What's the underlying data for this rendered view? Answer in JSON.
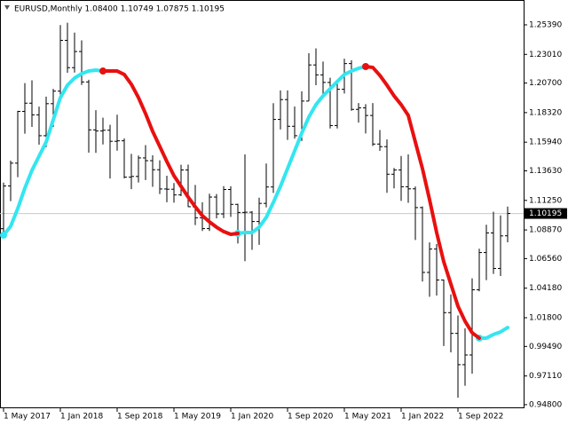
{
  "chart_data": {
    "type": "ohlc",
    "title": "EURUSD,Monthly  1.08400 1.10749 1.07875 1.10195",
    "categories": [
      "1 May 2017",
      null,
      null,
      null,
      null,
      null,
      null,
      null,
      "1 Jan 2018",
      null,
      null,
      null,
      null,
      null,
      null,
      null,
      "1 Sep 2018",
      null,
      null,
      null,
      null,
      null,
      null,
      null,
      "1 May 2019",
      null,
      null,
      null,
      null,
      null,
      null,
      null,
      "1 Jan 2020",
      null,
      null,
      null,
      null,
      null,
      null,
      null,
      "1 Sep 2020",
      null,
      null,
      null,
      null,
      null,
      null,
      null,
      "1 May 2021",
      null,
      null,
      null,
      null,
      null,
      null,
      null,
      "1 Jan 2022",
      null,
      null,
      null,
      null,
      null,
      null,
      null,
      "1 Sep 2022",
      null,
      null,
      null,
      null,
      null,
      null,
      null
    ],
    "ohlc": [
      [
        1.0897,
        1.1268,
        1.0839,
        1.1241
      ],
      [
        1.1241,
        1.1445,
        1.1119,
        1.1425
      ],
      [
        1.1425,
        1.1846,
        1.1312,
        1.1842
      ],
      [
        1.1842,
        1.207,
        1.1662,
        1.1908
      ],
      [
        1.1908,
        1.2092,
        1.1717,
        1.1814
      ],
      [
        1.1814,
        1.188,
        1.1574,
        1.1646
      ],
      [
        1.1646,
        1.1961,
        1.1554,
        1.1904
      ],
      [
        1.1904,
        1.2023,
        1.1717,
        1.2005
      ],
      [
        1.2005,
        1.2537,
        1.1915,
        1.2414
      ],
      [
        1.2414,
        1.2556,
        1.2153,
        1.2194
      ],
      [
        1.2194,
        1.2476,
        1.2155,
        1.2324
      ],
      [
        1.2324,
        1.2414,
        1.2055,
        1.2079
      ],
      [
        1.2079,
        1.2097,
        1.151,
        1.1693
      ],
      [
        1.1693,
        1.1852,
        1.1508,
        1.1684
      ],
      [
        1.1684,
        1.1791,
        1.1576,
        1.169
      ],
      [
        1.169,
        1.1734,
        1.1301,
        1.1601
      ],
      [
        1.1601,
        1.1815,
        1.1526,
        1.1605
      ],
      [
        1.1605,
        1.1625,
        1.1302,
        1.1312
      ],
      [
        1.1312,
        1.15,
        1.1216,
        1.1318
      ],
      [
        1.1318,
        1.1486,
        1.1269,
        1.1467
      ],
      [
        1.1467,
        1.157,
        1.1289,
        1.1445
      ],
      [
        1.1445,
        1.1488,
        1.1234,
        1.1372
      ],
      [
        1.1372,
        1.1448,
        1.1176,
        1.1217
      ],
      [
        1.1217,
        1.1324,
        1.111,
        1.1215
      ],
      [
        1.1215,
        1.1265,
        1.1107,
        1.1169
      ],
      [
        1.1169,
        1.1412,
        1.116,
        1.137
      ],
      [
        1.137,
        1.1413,
        1.1072,
        1.1074
      ],
      [
        1.1074,
        1.125,
        1.0926,
        1.0985
      ],
      [
        1.0985,
        1.111,
        1.0879,
        1.0898
      ],
      [
        1.0898,
        1.1179,
        1.0879,
        1.1152
      ],
      [
        1.1152,
        1.1176,
        1.0981,
        1.1016
      ],
      [
        1.1016,
        1.124,
        1.0982,
        1.1213
      ],
      [
        1.1213,
        1.1239,
        1.0992,
        1.1093
      ],
      [
        1.1093,
        1.1098,
        1.0778,
        1.1028
      ],
      [
        1.1028,
        1.1495,
        1.0636,
        1.103
      ],
      [
        1.103,
        1.1039,
        1.0727,
        1.0955
      ],
      [
        1.0955,
        1.1147,
        1.0767,
        1.1101
      ],
      [
        1.1101,
        1.1422,
        1.1069,
        1.1233
      ],
      [
        1.1233,
        1.1908,
        1.1185,
        1.1777
      ],
      [
        1.1777,
        1.2011,
        1.1696,
        1.1937
      ],
      [
        1.1937,
        1.2011,
        1.1612,
        1.1722
      ],
      [
        1.1722,
        1.1881,
        1.1622,
        1.1646
      ],
      [
        1.1646,
        1.2004,
        1.1603,
        1.1925
      ],
      [
        1.1925,
        1.231,
        1.1924,
        1.2216
      ],
      [
        1.2216,
        1.2349,
        1.2053,
        1.2136
      ],
      [
        1.2136,
        1.2243,
        1.1952,
        1.2075
      ],
      [
        1.2075,
        1.2113,
        1.1704,
        1.1728
      ],
      [
        1.1728,
        1.208,
        1.1704,
        1.202
      ],
      [
        1.202,
        1.2266,
        1.1986,
        1.2227
      ],
      [
        1.2227,
        1.2254,
        1.1847,
        1.1858
      ],
      [
        1.1858,
        1.1909,
        1.1752,
        1.187
      ],
      [
        1.187,
        1.19,
        1.1664,
        1.1809
      ],
      [
        1.1809,
        1.1909,
        1.1563,
        1.1579
      ],
      [
        1.1579,
        1.1692,
        1.1524,
        1.1558
      ],
      [
        1.1558,
        1.1616,
        1.1186,
        1.1336
      ],
      [
        1.1336,
        1.1386,
        1.1222,
        1.137
      ],
      [
        1.137,
        1.1483,
        1.1121,
        1.1235
      ],
      [
        1.1235,
        1.1495,
        1.1106,
        1.1218
      ],
      [
        1.1218,
        1.1237,
        1.0806,
        1.1067
      ],
      [
        1.1067,
        1.1076,
        1.0471,
        1.0545
      ],
      [
        1.0545,
        1.0787,
        1.0349,
        1.0733
      ],
      [
        1.0733,
        1.0774,
        1.0359,
        1.0484
      ],
      [
        1.0484,
        1.0487,
        0.9952,
        1.0221
      ],
      [
        1.0221,
        1.0368,
        0.9901,
        1.0054
      ],
      [
        1.0054,
        1.0198,
        0.9536,
        0.9802
      ],
      [
        0.9802,
        1.0094,
        0.9632,
        0.988
      ],
      [
        0.988,
        1.0497,
        0.973,
        1.0405
      ],
      [
        1.0405,
        1.0736,
        1.0393,
        1.0705
      ],
      [
        1.0705,
        1.0929,
        1.0483,
        1.0863
      ],
      [
        1.0863,
        1.1033,
        1.0533,
        1.0577
      ],
      [
        1.0577,
        1.1004,
        1.0516,
        1.0839
      ],
      [
        1.084,
        1.10749,
        1.07875,
        1.10195
      ]
    ],
    "series": [
      {
        "color": "#33e6f0",
        "values": [
          1.0845,
          1.0916,
          1.1059,
          1.1224,
          1.1367,
          1.1481,
          1.1595,
          1.1774,
          1.1953,
          1.2053,
          1.211,
          1.2146,
          1.2167,
          1.2174,
          1.2167,
          null,
          null,
          null,
          null,
          null,
          null,
          null,
          null,
          null,
          null,
          null,
          null,
          null,
          null,
          null,
          null,
          null,
          null,
          1.0859,
          1.0866,
          1.0866,
          1.0909,
          1.0988,
          1.1109,
          1.1238,
          1.1381,
          1.1524,
          1.1667,
          1.1796,
          1.1896,
          1.1967,
          1.2024,
          1.2082,
          1.2139,
          1.2167,
          1.2189,
          1.2203,
          null,
          null,
          null,
          null,
          null,
          null,
          null,
          null,
          null,
          null,
          null,
          null,
          null,
          null,
          null,
          1.0016,
          1.0016,
          1.0045,
          1.0066,
          1.0101
        ]
      },
      {
        "color": "#e81010",
        "values": [
          null,
          null,
          null,
          null,
          null,
          null,
          null,
          null,
          null,
          null,
          null,
          null,
          null,
          null,
          1.2167,
          1.2167,
          1.2167,
          1.2139,
          1.206,
          1.1953,
          1.1824,
          1.1681,
          1.156,
          1.1438,
          1.1324,
          1.1238,
          1.1152,
          1.1074,
          1.1002,
          1.0952,
          1.0909,
          1.0874,
          1.0852,
          1.0859,
          null,
          null,
          null,
          null,
          null,
          null,
          null,
          null,
          null,
          null,
          null,
          null,
          null,
          null,
          null,
          null,
          null,
          1.2203,
          1.2196,
          1.2132,
          1.2053,
          1.1967,
          1.1896,
          1.181,
          1.1595,
          1.1381,
          1.1131,
          1.0866,
          1.0631,
          1.0452,
          1.0273,
          1.0152,
          1.0059,
          1.0016,
          null,
          null,
          null,
          null
        ]
      }
    ],
    "ylim": [
      0.9451,
      1.2739
    ],
    "yticks": [
      {
        "value": 1.2539,
        "label": "1.25390"
      },
      {
        "value": 1.2301,
        "label": "1.23010"
      },
      {
        "value": 1.207,
        "label": "1.20700"
      },
      {
        "value": 1.1832,
        "label": "1.18320"
      },
      {
        "value": 1.1594,
        "label": "1.15940"
      },
      {
        "value": 1.1363,
        "label": "1.13630"
      },
      {
        "value": 1.1125,
        "label": "1.11250"
      },
      {
        "value": 1.0887,
        "label": "1.08870"
      },
      {
        "value": 1.0656,
        "label": "1.06560"
      },
      {
        "value": 1.0418,
        "label": "1.04180"
      },
      {
        "value": 1.018,
        "label": "1.01800"
      },
      {
        "value": 0.9949,
        "label": "0.99490"
      },
      {
        "value": 0.9711,
        "label": "0.97110"
      },
      {
        "value": 0.948,
        "label": "0.94800"
      }
    ],
    "last_price": 1.10195,
    "bar_color": "#000000"
  }
}
